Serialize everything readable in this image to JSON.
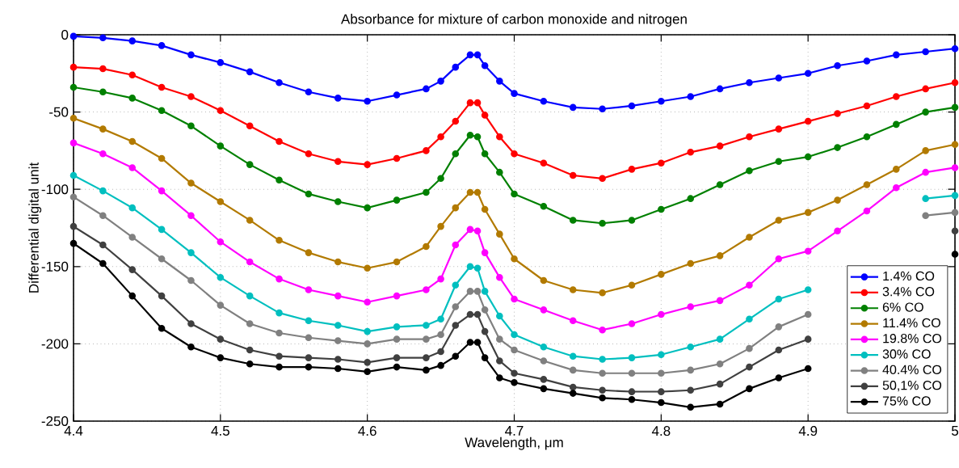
{
  "chart_data": {
    "type": "line",
    "title": "Absorbance for mixture of carbon monoxide and nitrogen",
    "xlabel": "Wavelength, μm",
    "ylabel": "Differential digital unit",
    "x": [
      4.4,
      4.42,
      4.44,
      4.46,
      4.48,
      4.5,
      4.52,
      4.54,
      4.56,
      4.58,
      4.6,
      4.62,
      4.64,
      4.65,
      4.66,
      4.67,
      4.675,
      4.68,
      4.69,
      4.7,
      4.72,
      4.74,
      4.76,
      4.78,
      4.8,
      4.82,
      4.84,
      4.86,
      4.88,
      4.9,
      4.92,
      4.94,
      4.96,
      4.98,
      5
    ],
    "xlim": [
      4.4,
      5
    ],
    "ylim": [
      -250,
      0
    ],
    "xticks": [
      4.4,
      4.5,
      4.6,
      4.7,
      4.8,
      4.9,
      5
    ],
    "yticks": [
      -250,
      -200,
      -150,
      -100,
      -50,
      0
    ],
    "grid": true,
    "legend": "bottom right",
    "marker": "circle",
    "line_style": "solid",
    "series": [
      {
        "name": "1.4% CO",
        "color": "#0000ff",
        "values": [
          -1,
          -2,
          -4,
          -7,
          -13,
          -18,
          -24,
          -31,
          -37,
          -41,
          -43,
          -39,
          -35,
          -30,
          -21,
          -13,
          -13,
          -20,
          -30,
          -38,
          -43,
          -47,
          -48,
          -46,
          -43,
          -40,
          -35,
          -31,
          -28,
          -25,
          -20,
          -17,
          -13,
          -11,
          -9
        ]
      },
      {
        "name": "3.4% CO",
        "color": "#ff0000",
        "values": [
          -21,
          -22,
          -26,
          -34,
          -40,
          -49,
          -59,
          -69,
          -77,
          -82,
          -84,
          -80,
          -75,
          -66,
          -56,
          -44,
          -44,
          -52,
          -66,
          -77,
          -83,
          -91,
          -93,
          -87,
          -83,
          -76,
          -72,
          -66,
          -61,
          -56,
          -51,
          -46,
          -40,
          -35,
          -31
        ]
      },
      {
        "name": "6% CO",
        "color": "#008000",
        "values": [
          -34,
          -37,
          -41,
          -49,
          -59,
          -72,
          -84,
          -94,
          -103,
          -108,
          -112,
          -107,
          -102,
          -93,
          -77,
          -65,
          -66,
          -77,
          -89,
          -103,
          -111,
          -120,
          -122,
          -120,
          -113,
          -106,
          -97,
          -88,
          -82,
          -79,
          -73,
          -66,
          -58,
          -50,
          -47
        ]
      },
      {
        "name": "11.4% CO",
        "color": "#b27a00",
        "values": [
          -54,
          -61,
          -69,
          -80,
          -96,
          -108,
          -120,
          -133,
          -141,
          -147,
          -151,
          -147,
          -137,
          -124,
          -112,
          -102,
          -102,
          -113,
          -129,
          -145,
          -159,
          -165,
          -167,
          -162,
          -155,
          -148,
          -143,
          -131,
          -120,
          -115,
          -107,
          -97,
          -87,
          -75,
          -71
        ]
      },
      {
        "name": "19.8% CO",
        "color": "#ff00ff",
        "values": [
          -70,
          -77,
          -86,
          -101,
          -117,
          -134,
          -147,
          -158,
          -165,
          -169,
          -173,
          -169,
          -165,
          -158,
          -136,
          -126,
          -127,
          -141,
          -157,
          -171,
          -178,
          -185,
          -191,
          -187,
          -181,
          -176,
          -172,
          -162,
          -145,
          -140,
          -127,
          -114,
          -99,
          -89,
          -86
        ]
      },
      {
        "name": "30% CO",
        "color": "#00bfbf",
        "values": [
          -91,
          -101,
          -112,
          -126,
          -141,
          -157,
          -169,
          -180,
          -185,
          -188,
          -192,
          -189,
          -188,
          -184,
          -162,
          -150,
          -151,
          -166,
          -182,
          -194,
          -202,
          -208,
          -210,
          -209,
          -207,
          -202,
          -197,
          -184,
          -171,
          -165,
          null,
          null,
          null,
          -106,
          -104
        ]
      },
      {
        "name": "40.4% CO",
        "color": "#808080",
        "values": [
          -105,
          -117,
          -131,
          -145,
          -159,
          -175,
          -187,
          -193,
          -196,
          -198,
          -200,
          -197,
          -197,
          -194,
          -176,
          -166,
          -166,
          -178,
          -197,
          -204,
          -211,
          -217,
          -219,
          -219,
          -219,
          -217,
          -213,
          -203,
          -189,
          -181,
          null,
          null,
          null,
          -117,
          -115
        ]
      },
      {
        "name": "50,1% CO",
        "color": "#404040",
        "values": [
          -124,
          -136,
          -152,
          -169,
          -187,
          -197,
          -204,
          -208,
          -209,
          -210,
          -212,
          -209,
          -209,
          -205,
          -188,
          -181,
          -181,
          -192,
          -211,
          -219,
          -223,
          -228,
          -230,
          -231,
          -231,
          -230,
          -226,
          -215,
          -204,
          -197,
          null,
          null,
          null,
          null,
          -127
        ]
      },
      {
        "name": "75% CO",
        "color": "#000000",
        "values": [
          -135,
          -148,
          -169,
          -190,
          -202,
          -209,
          -213,
          -215,
          -215,
          -216,
          -218,
          -215,
          -217,
          -214,
          -208,
          -199,
          -199,
          -209,
          -222,
          -225,
          -229,
          -232,
          -235,
          -236,
          -238,
          -241,
          -239,
          -229,
          -222,
          -216,
          null,
          null,
          null,
          null,
          -142
        ]
      }
    ]
  }
}
